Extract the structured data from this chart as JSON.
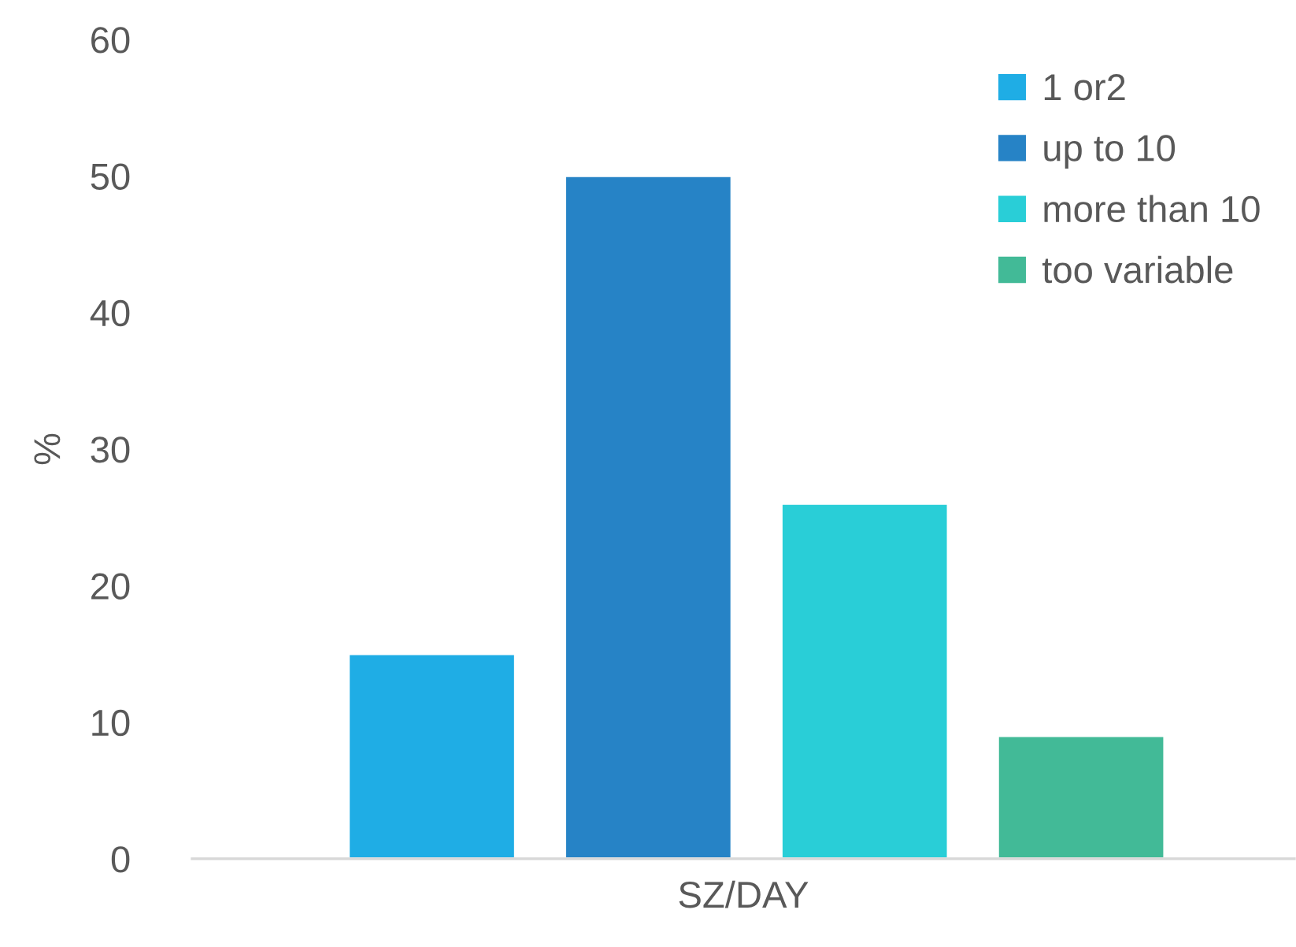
{
  "chart_data": {
    "type": "bar",
    "categories": [
      "SZ/DAY"
    ],
    "ylabel": "%",
    "series": [
      {
        "name": "1 or2",
        "color": "#1fade5",
        "values": [
          15
        ]
      },
      {
        "name": "up to 10",
        "color": "#2683c6",
        "values": [
          50
        ]
      },
      {
        "name": "more than 10",
        "color": "#29ced7",
        "values": [
          26
        ]
      },
      {
        "name": "too variable",
        "color": "#42ba97",
        "values": [
          9
        ]
      }
    ],
    "ylim": [
      0,
      60
    ],
    "yticks": [
      0,
      10,
      20,
      30,
      40,
      50,
      60
    ],
    "grid": false,
    "legend": "top right"
  }
}
